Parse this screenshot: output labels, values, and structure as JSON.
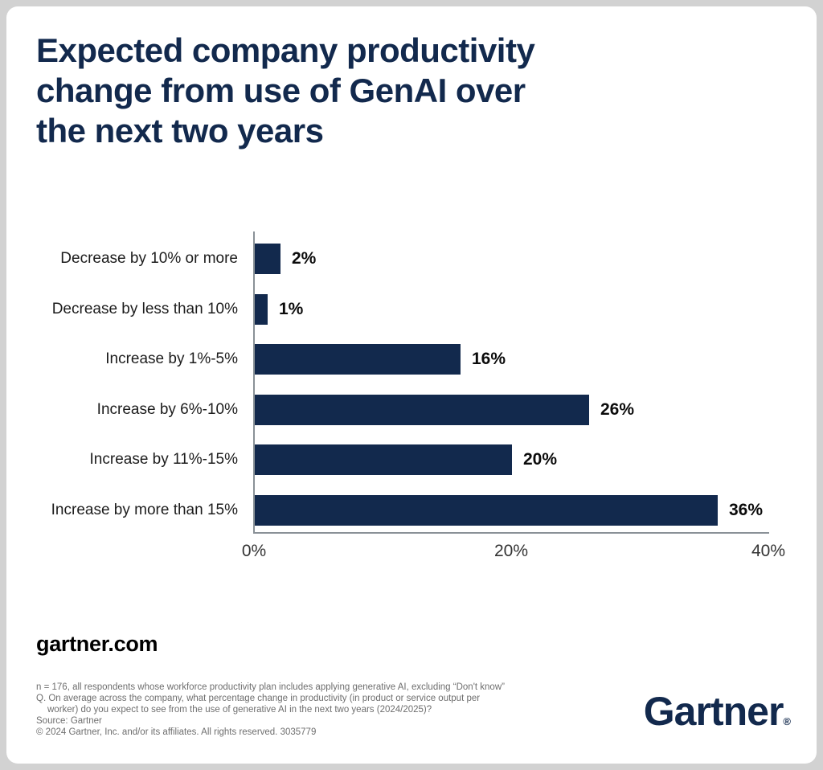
{
  "header": {
    "title_lines": [
      "Expected company productivity",
      "change from use of GenAI over",
      "the next two years"
    ]
  },
  "chart_data": {
    "type": "bar",
    "orientation": "horizontal",
    "title": "Expected company productivity change from use of GenAI over the next two years",
    "categories": [
      "Decrease by 10% or more",
      "Decrease by less than 10%",
      "Increase by 1%-5%",
      "Increase by 6%-10%",
      "Increase by 11%-15%",
      "Increase by more than 15%"
    ],
    "values": [
      2,
      1,
      16,
      26,
      20,
      36
    ],
    "value_labels": [
      "2%",
      "1%",
      "16%",
      "26%",
      "20%",
      "36%"
    ],
    "xlabel": "",
    "ylabel": "",
    "xlim": [
      0,
      40
    ],
    "x_tick_values": [
      0,
      20,
      40
    ],
    "x_tick_labels": [
      "0%",
      "20%",
      "40%"
    ],
    "bar_color": "#12294d",
    "axis_color": "#8a9197",
    "grid": false,
    "legend_position": "none"
  },
  "footer": {
    "website": "gartner.com",
    "notes": [
      {
        "text": "n = 176, all respondents whose workforce productivity plan includes applying generative AI, excluding “Don't know”",
        "indent": false
      },
      {
        "text": "Q. On average across the company, what percentage change in productivity (in product or service output per",
        "indent": false
      },
      {
        "text": "worker) do you expect to see from the use of generative AI in the next two years (2024/2025)?",
        "indent": true
      },
      {
        "text": "Source: Gartner",
        "indent": false
      },
      {
        "text": "© 2024 Gartner, Inc. and/or its affiliates. All rights reserved. 3035779",
        "indent": false
      }
    ],
    "logo_text": "Gartner",
    "logo_reg": "®"
  },
  "colors": {
    "navy": "#12294d",
    "card_background": "#ffffff",
    "outer_border": "#d2d2d2",
    "footnote_gray": "#6e6e6e"
  }
}
